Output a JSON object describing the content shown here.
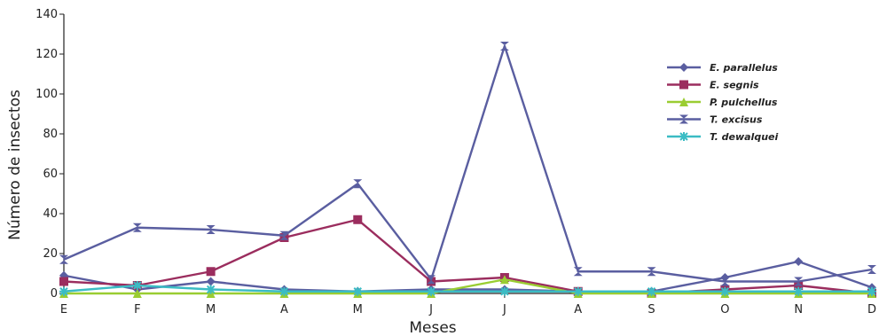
{
  "chart_data": {
    "type": "line",
    "title": "",
    "xlabel": "Meses",
    "ylabel": "Número de insectos",
    "categories": [
      "E",
      "F",
      "M",
      "A",
      "M",
      "J",
      "J",
      "A",
      "S",
      "O",
      "N",
      "D"
    ],
    "ylim": [
      0,
      140
    ],
    "yticks": [
      0,
      20,
      40,
      60,
      80,
      100,
      120,
      140
    ],
    "grid": false,
    "legend_position": "top-right",
    "series": [
      {
        "name": "E. parallelus",
        "color": "#5a5ea0",
        "marker": "diamond",
        "values": [
          9,
          2,
          6,
          2,
          1,
          2,
          2,
          1,
          1,
          8,
          16,
          3
        ]
      },
      {
        "name": "E. segnis",
        "color": "#9b2d5e",
        "marker": "square",
        "values": [
          6,
          4,
          11,
          28,
          37,
          6,
          8,
          1,
          0,
          2,
          4,
          0
        ]
      },
      {
        "name": "P. pulchellus",
        "color": "#9acd32",
        "marker": "triangle",
        "values": [
          0,
          0,
          0,
          0,
          0,
          0,
          7,
          0,
          0,
          0,
          0,
          0
        ]
      },
      {
        "name": "T. excisus",
        "color": "#5a5ea0",
        "marker": "hourglass",
        "values": [
          17,
          33,
          32,
          29,
          55,
          7,
          124,
          11,
          11,
          6,
          6,
          12
        ]
      },
      {
        "name": "T. dewalquei",
        "color": "#3bbcc4",
        "marker": "star",
        "values": [
          1,
          4,
          2,
          1,
          1,
          1,
          1,
          1,
          1,
          1,
          1,
          1
        ]
      }
    ]
  }
}
